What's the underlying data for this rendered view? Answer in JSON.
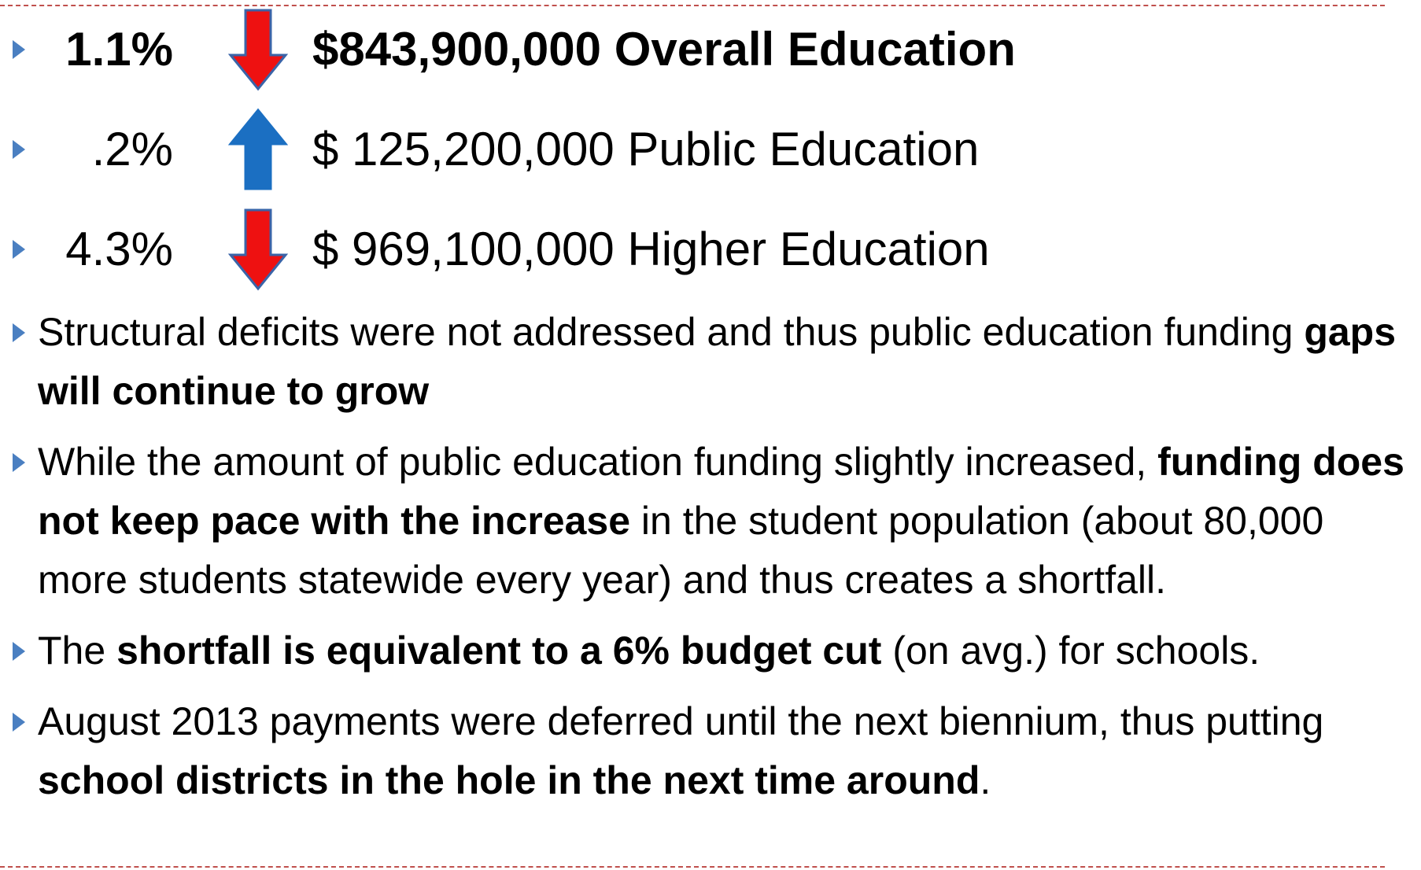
{
  "rows": [
    {
      "percent": "1.1%",
      "arrow": "down",
      "amount": "$843,900,000 Overall Education",
      "bold": true
    },
    {
      "percent": ".2%",
      "arrow": "up",
      "amount": "$ 125,200,000 Public Education",
      "bold": false
    },
    {
      "percent": "4.3%",
      "arrow": "down",
      "amount": "$ 969,100,000 Higher Education",
      "bold": false
    }
  ],
  "bullets": [
    {
      "parts": [
        {
          "text": "Structural deficits were not addressed and thus public education funding ",
          "bold": false
        },
        {
          "text": "gaps will continue to grow",
          "bold": true
        }
      ]
    },
    {
      "parts": [
        {
          "text": "While the amount of public education funding slightly increased, ",
          "bold": false
        },
        {
          "text": "funding does not keep pace with the increase",
          "bold": true
        },
        {
          "text": " in the student population (about 80,000 more students statewide every year) and thus creates a shortfall.",
          "bold": false
        }
      ]
    },
    {
      "parts": [
        {
          "text": "The ",
          "bold": false
        },
        {
          "text": "shortfall is equivalent to a 6% budget cut",
          "bold": true
        },
        {
          "text": " (on avg.) for schools.",
          "bold": false
        }
      ]
    },
    {
      "parts": [
        {
          "text": "August 2013 payments were deferred until the next biennium, thus putting ",
          "bold": false
        },
        {
          "text": "school districts in the hole in the next time around",
          "bold": true
        },
        {
          "text": ".",
          "bold": false
        }
      ]
    }
  ]
}
